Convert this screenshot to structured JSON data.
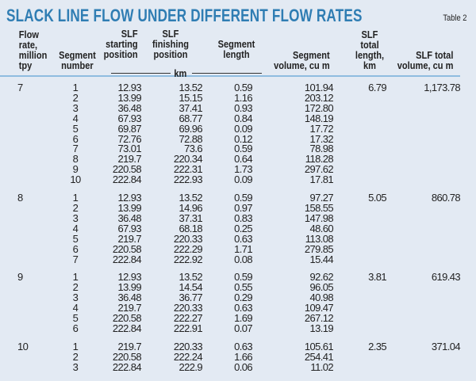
{
  "title": "SLACK LINE FLOW UNDER DIFFERENT FLOW RATES",
  "table_number": "Table 2",
  "colors": {
    "title": "#2f7db3",
    "background": "#e3eaf3",
    "rule": "#8fbde0"
  },
  "headers": [
    "Flow rate, million tpy",
    "Segment number",
    "SLF starting position",
    "SLF finishing position",
    "Segment length",
    "Segment volume, cu m",
    "SLF total length, km",
    "SLF total volume, cu m"
  ],
  "header_unit": "km",
  "groups": [
    {
      "flow": "7",
      "total_length": "6.79",
      "total_volume": "1,173.78",
      "rows": [
        [
          "1",
          "12.93",
          "13.52",
          "0.59",
          "101.94"
        ],
        [
          "2",
          "13.99",
          "15.15",
          "1.16",
          "203.12"
        ],
        [
          "3",
          "36.48",
          "37.41",
          "0.93",
          "172.80"
        ],
        [
          "4",
          "67.93",
          "68.77",
          "0.84",
          "148.19"
        ],
        [
          "5",
          "69.87",
          "69.96",
          "0.09",
          "17.72"
        ],
        [
          "6",
          "72.76",
          "72.88",
          "0.12",
          "17.32"
        ],
        [
          "7",
          "73.01",
          "73.6",
          "0.59",
          "78.98"
        ],
        [
          "8",
          "219.7",
          "220.34",
          "0.64",
          "118.28"
        ],
        [
          "9",
          "220.58",
          "222.31",
          "1.73",
          "297.62"
        ],
        [
          "10",
          "222.84",
          "222.93",
          "0.09",
          "17.81"
        ]
      ]
    },
    {
      "flow": "8",
      "total_length": "5.05",
      "total_volume": "860.78",
      "rows": [
        [
          "1",
          "12.93",
          "13.52",
          "0.59",
          "97.27"
        ],
        [
          "2",
          "13.99",
          "14.96",
          "0.97",
          "158.55"
        ],
        [
          "3",
          "36.48",
          "37.31",
          "0.83",
          "147.98"
        ],
        [
          "4",
          "67.93",
          "68.18",
          "0.25",
          "48.60"
        ],
        [
          "5",
          "219.7",
          "220.33",
          "0.63",
          "113.08"
        ],
        [
          "6",
          "220.58",
          "222.29",
          "1.71",
          "279.85"
        ],
        [
          "7",
          "222.84",
          "222.92",
          "0.08",
          "15.44"
        ]
      ]
    },
    {
      "flow": "9",
      "total_length": "3.81",
      "total_volume": "619.43",
      "rows": [
        [
          "1",
          "12.93",
          "13.52",
          "0.59",
          "92.62"
        ],
        [
          "2",
          "13.99",
          "14.54",
          "0.55",
          "96.05"
        ],
        [
          "3",
          "36.48",
          "36.77",
          "0.29",
          "40.98"
        ],
        [
          "4",
          "219.7",
          "220.33",
          "0.63",
          "109.47"
        ],
        [
          "5",
          "220.58",
          "222.27",
          "1.69",
          "267.12"
        ],
        [
          "6",
          "222.84",
          "222.91",
          "0.07",
          "13.19"
        ]
      ]
    },
    {
      "flow": "10",
      "total_length": "2.35",
      "total_volume": "371.04",
      "rows": [
        [
          "1",
          "219.7",
          "220.33",
          "0.63",
          "105.61"
        ],
        [
          "2",
          "220.58",
          "222.24",
          "1.66",
          "254.41"
        ],
        [
          "3",
          "222.84",
          "222.9",
          "0.06",
          "11.02"
        ]
      ]
    }
  ]
}
